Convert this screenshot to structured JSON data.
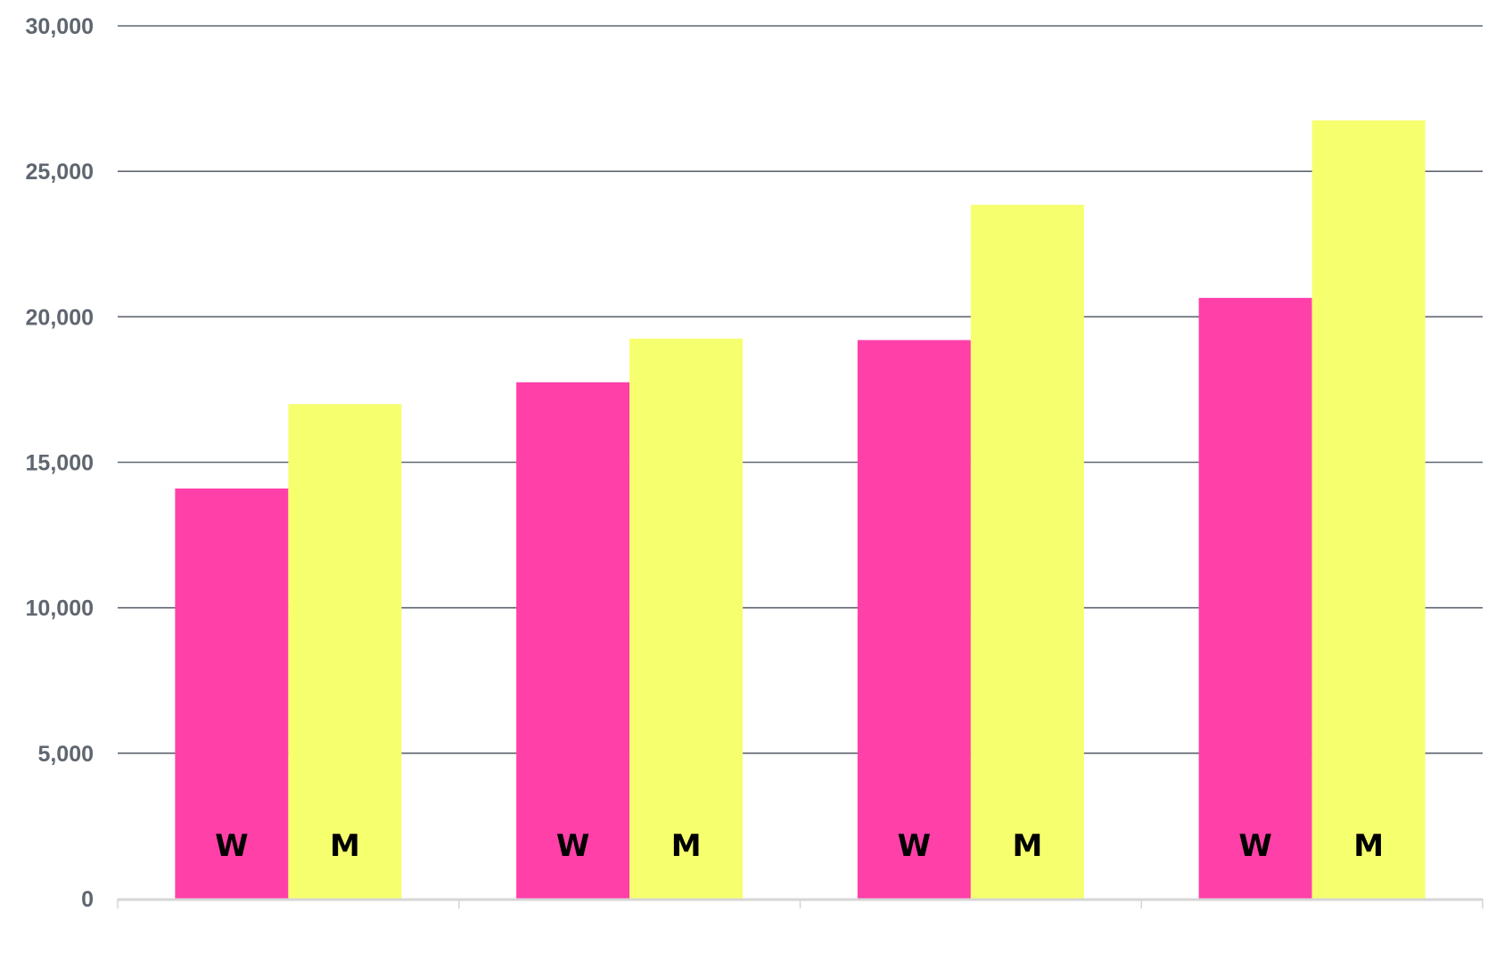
{
  "chart_data": {
    "type": "bar",
    "title": "",
    "xlabel": "",
    "ylabel": "",
    "ylim": [
      0,
      30000
    ],
    "yticks": [
      0,
      5000,
      10000,
      15000,
      20000,
      25000,
      30000
    ],
    "ytick_labels": [
      "0",
      "5,000",
      "10,000",
      "15,000",
      "20,000",
      "25,000",
      "30,000"
    ],
    "grid": true,
    "categories": [
      "",
      "",
      "",
      ""
    ],
    "series": [
      {
        "name": "W",
        "color": "#ff40a8",
        "values": [
          14100,
          17750,
          19200,
          20650
        ]
      },
      {
        "name": "M",
        "color": "#f6ff6e",
        "values": [
          17000,
          19250,
          23850,
          26750
        ]
      }
    ]
  }
}
